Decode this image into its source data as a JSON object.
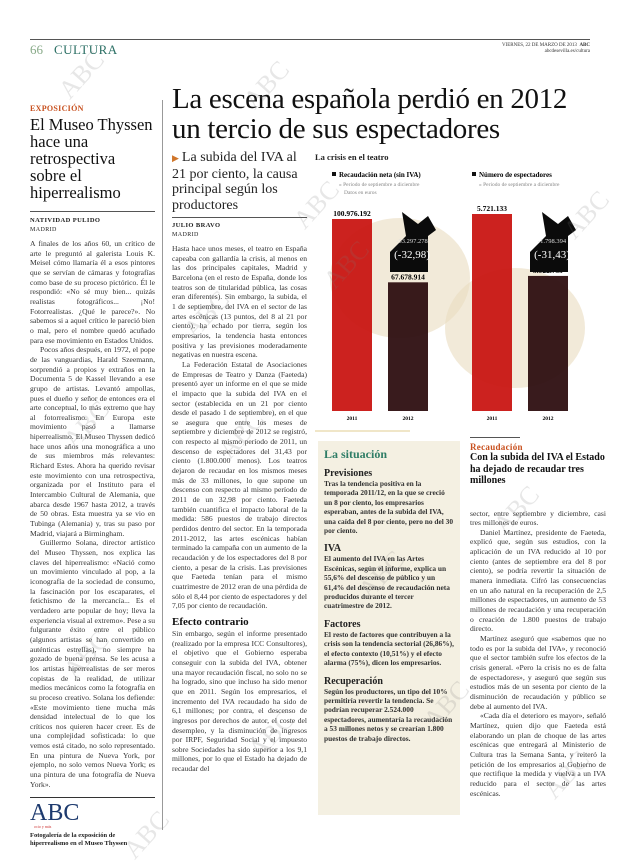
{
  "header": {
    "page_number": "66",
    "section": "CULTURA",
    "date": "VIERNES, 22 DE MARZO DE 2013",
    "brand": "ABC",
    "url": "abcdesevilla.es/cultura"
  },
  "watermark": "ABC",
  "side_article": {
    "kicker": "EXPOSICIÓN",
    "title": "El Museo Thyssen hace una retrospectiva sobre el hiperrealismo",
    "author": "NATIVIDAD PULIDO",
    "location": "MADRID",
    "paragraphs": [
      "A finales de los años 60, un crítico de arte le preguntó al galerista Louis K. Meisel cómo llamaría él a esos pintores que se servían de cámaras y fotografías como base de su proceso pictórico. Él le respondió: «No sé muy bien... quizás realistas fotográficos... ¡No! Fotorrealistas. ¿Qué le parece?». No sabemos si a aquel crítico le pareció bien o mal, pero el nombre quedó acuñado para ese movimiento en Estados Unidos.",
      "Pocos años después, en 1972, el pope de las vanguardias, Harald Szeemann, sorprendió a propios y extraños en la Documenta 5 de Kassel llevando a ese grupo de artistas. Levantó ampollas, pues el dueño y señor de entonces era el arte conceptual, lo más extremo que hay al fotorrealismo. En Europa este movimiento pasó a llamarse hiperrealismo. El Museo Thyssen dedicó hace unos años una monográfica a uno de sus miembros más relevantes: Richard Estes. Ahora ha querido revisar este movimiento con una retrospectiva, organizada por el Instituto para el Intercambio Cultural de Alemania, que abarca desde 1967 hasta 2012, a través de 50 obras. Esta muestra ya se vio en Tubinga (Alemania) y, tras su paso por Madrid, viajará a Birmingham.",
      "Guillermo Solana, director artístico del Museo Thyssen, nos explica las claves del hiperrealismo: «Nació como un movimiento vinculado al pop, a la iconografía de la sociedad de consumo, la fascinación por los escaparates, el fetichismo de la mercancía... Es el verdadero arte popular de hoy; lleva la experiencia visual al extremo». Pese a su fulgurante éxito entre el público (algunos artistas se han convertido en auténticas estrellas), no siempre ha gozado de buena prensa. Se les acusa a los artistas hiperrealistas de ser meros copistas de la realidad, de utilizar medios mecánicos como la fotografía en su proceso creativo. Solana los defiende: «Este movimiento tiene mucha más densidad intelectual de lo que los críticos nos quieren hacer creer. Es de una complejidad sofisticada: lo que vemos está citado, no solo representado. En una pintura de Nueva York, por ejemplo, no solo vemos Nueva York; es una pintura de una fotografía de Nueva York»."
    ],
    "promo_logo": "ABC",
    "promo_logo_sub": "ocio y más",
    "promo_caption": "Fotogalería de la exposición de hiperrealismo en el Museo Thyssen"
  },
  "main_article": {
    "headline": "La escena española perdió en 2012 un tercio de sus espectadores",
    "deck": "La subida del IVA al 21 por ciento, la causa principal según los productores",
    "author": "JULIO BRAVO",
    "location": "MADRID",
    "paragraphs": [
      "Hasta hace unos meses, el teatro en España capeaba con gallardía la crisis, al menos en las dos principales capitales, Madrid y Barcelona (en el resto de España, donde los teatros son de titularidad pública, las cosas eran diferentes). Sin embargo, la subida, el 1 de septiembre, del IVA en el sector de las artes escénicas (13 puntos, del 8 al 21 por ciento), ha echado por tierra, según los empresarios, la tendencia hasta entonces positiva y las previsiones moderadamente negativas en nuestra escena.",
      "La Federación Estatal de Asociaciones de Empresas de Teatro y Danza (Faeteda) presentó ayer un informe en el que se mide el impacto que la subida del IVA en el sector (establecida en un 21 por ciento desde el pasado 1 de septiembre), en el que se asegura que entre los meses de septiembre y diciembre de 2012 se registró, con respecto al mismo período de 2011, un descenso de espectadores del 31,43 por ciento (1.800.000 menos). Los teatros dejaron de recaudar en los mismos meses más de 33 millones, lo que supone un descenso con respecto al mismo período de 2011 de un 32,98 por ciento. Faeteda también cuantifica el impacto laboral de la medida: 586 puestos de trabajo directos perdidos dentro del sector. En la temporada 2011-2012, las artes escénicas habían terminado la campaña con un aumento de la recaudación y de los espectadores del 8 por ciento, a pesar de la crisis. Las previsiones que Faeteda tenían para el mismo cuatrimestre de 2012 eran de una pérdida de sólo el 8,44 por ciento de espectadores y del 7,05 por ciento de recaudación."
    ],
    "subhead": "Efecto contrario",
    "paragraphs2": [
      "Sin embargo, según el informe presentado (realizado por la empresa ICC Consultores), el objetivo que el Gobierno esperaba conseguir con la subida del IVA, obtener una mayor recaudación fiscal, no solo no se ha logrado, sino que incluso ha sido menor que en 2011. Según los empresarios, el incremento del IVA recaudado ha sido de 6,1 millones; por contra, el descenso de ingresos por derechos de autor, el coste del desempleo, y la disminución de ingresos por IRPF, Seguridad Social y el impuesto sobre Sociedades ha sido superior a los 9,1 millones, por lo que el Estado ha dejado de recaudar del"
    ]
  },
  "sidebar": {
    "title": "La situación",
    "items": [
      {
        "heading": "Previsiones",
        "text": "Tras la tendencia positiva en la temporada 2011/12, en la que se creció un 8 por ciento, los empresarios esperaban, antes de la subida del IVA, una caída del 8 por ciento, pero no del 30 por ciento."
      },
      {
        "heading": "IVA",
        "text": "El aumento del IVA en las Artes Escénicas, según el informe, explica un 55,6% del descenso de público y un 61,4% del descenso de recaudación neta producidos durante el tercer cuatrimestre de 2012."
      },
      {
        "heading": "Factores",
        "text": "El resto de factores que contribuyen a la crisis son la tendencia sectorial (26,86%), el efecto contexto (10,51%) y el efecto alarma (75%), dicen los empresarios."
      },
      {
        "heading": "Recuperación",
        "text": "Según los productores, un tipo del 10% permitiría revertir la tendencia. Se podrían recuperar 2.524.000 espectadores, aumentaría la recaudación a 53 millones netos y se crearían 1.800 puestos de trabajo directos."
      }
    ]
  },
  "right_article": {
    "kicker": "Recaudación",
    "title": "Con la subida del IVA el Estado ha dejado de recaudar tres millones",
    "paragraphs": [
      "sector, entre septiembre y diciembre, casi tres millones de euros.",
      "Daniel Martínez, presidente de Faeteda, explicó que, según sus estudios, con la aplicación de un IVA reducido al 10 por ciento (antes de septiembre era del 8 por ciento), se podría revertir la situación de manera inmediata. Cifró las consecuencias en un año natural en la recuperación de 2,5 millones de espectadores, un aumento de 53 millones de recaudación y una recuperación o creación de 1.800 puestos de trabajo directo.",
      "Martínez aseguró que «sabemos que no todo es por la subida del IVA», y reconoció que el sector también sufre los efectos de la crisis general. «Pero la crisis no es de falta de espectadores», y aseguró que según sus estudios más de un sesenta por ciento de la disminución de recaudación y público se debe al aumento del IVA.",
      "«Cada día el deterioro es mayor», señaló Martínez, quien dijo que Faeteda está elaborando un plan de choque de las artes escénicas que entregará al Ministerio de Cultura tras la Semana Santa, y reiteró la petición de los empresarios al Gobierno de que rectifique la medida y vuelva a un IVA reducido para el sector de las artes escénicas."
    ]
  },
  "chart_title": "La crisis en el teatro",
  "chart_data": [
    {
      "type": "bar",
      "title": "Recaudación neta (sin IVA)",
      "subtitle": "Periodo de septiembre a diciembre",
      "note": "Datos en euros",
      "categories": [
        "2011",
        "2012"
      ],
      "values": [
        100976192,
        67678914
      ],
      "value_labels": [
        "100.976.192",
        "67.678.914"
      ],
      "change_label": "-33.297.278",
      "change_pct_label": "(-32,98)",
      "colors": [
        "#c8110e",
        "#2a0a0c"
      ]
    },
    {
      "type": "bar",
      "title": "Número de espectadores",
      "subtitle": "Periodo de septiembre a diciembre",
      "categories": [
        "2011",
        "2012"
      ],
      "values": [
        5721133,
        3922739
      ],
      "value_labels": [
        "5.721.133",
        "3.922.739"
      ],
      "change_label": "-1.798.394",
      "change_pct_label": "(-31,43)",
      "colors": [
        "#c8110e",
        "#2a0a0c"
      ]
    }
  ]
}
